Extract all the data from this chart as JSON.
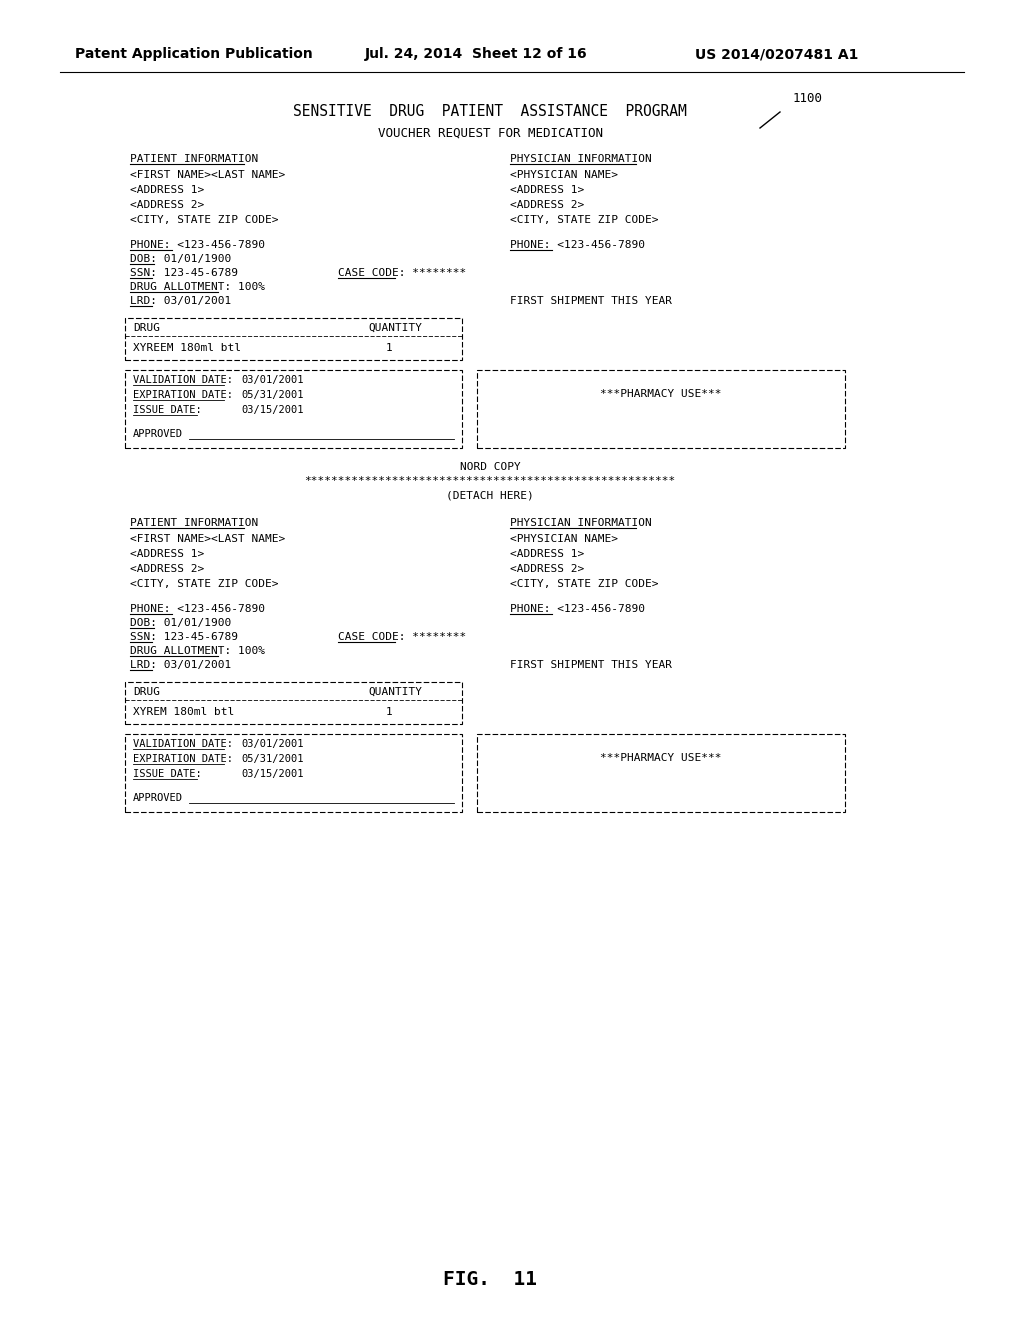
{
  "bg_color": "#ffffff",
  "text_color": "#000000",
  "header_line1": "Patent Application Publication",
  "header_line2": "Jul. 24, 2014  Sheet 12 of 16",
  "header_line3": "US 2014/0207481 A1",
  "title1": "SENSITIVE  DRUG  PATIENT  ASSISTANCE  PROGRAM",
  "title2": "VOUCHER REQUEST FOR MEDICATION",
  "fig_label": "FIG.  11",
  "ref_num": "1100",
  "section1": {
    "patient_info_label": "PATIENT INFORMATION",
    "patient_lines": [
      "<FIRST NAME><LAST NAME>",
      "<ADDRESS 1>",
      "<ADDRESS 2>",
      "<CITY, STATE ZIP CODE>"
    ],
    "physician_info_label": "PHYSICIAN INFORMATION",
    "physician_lines": [
      "<PHYSICIAN NAME>",
      "<ADDRESS 1>",
      "<ADDRESS 2>",
      "<CITY, STATE ZIP CODE>"
    ],
    "phone_left": "PHONE: <123-456-7890",
    "phone_right": "PHONE: <123-456-7890",
    "dob": "DOB: 01/01/1900",
    "ssn": "SSN: 123-45-6789",
    "case_code": "CASE CODE: ********",
    "drug_allotment": "DRUG ALLOTMENT: 100%",
    "lrd": "LRD: 03/01/2001",
    "first_shipment": "FIRST SHIPMENT THIS YEAR",
    "drug_table_drug": "DRUG",
    "drug_table_qty": "QUANTITY",
    "drug_table_drug_val": "XYREEM 180ml btl",
    "drug_table_qty_val": "1",
    "val_date_label": "VALIDATION DATE:",
    "val_date_val": "03/01/2001",
    "exp_date_label": "EXPIRATION DATE:",
    "exp_date_val": "05/31/2001",
    "issue_date_label": "ISSUE DATE:",
    "issue_date_val": "03/15/2001",
    "approved_label": "APPROVED",
    "pharmacy_label": "***PHARMACY USE***"
  },
  "separator_label": "NORD COPY",
  "detach_label": "(DETACH HERE)",
  "section2": {
    "patient_info_label": "PATIENT INFORMATION",
    "patient_lines": [
      "<FIRST NAME><LAST NAME>",
      "<ADDRESS 1>",
      "<ADDRESS 2>",
      "<CITY, STATE ZIP CODE>"
    ],
    "physician_info_label": "PHYSICIAN INFORMATION",
    "physician_lines": [
      "<PHYSICIAN NAME>",
      "<ADDRESS 1>",
      "<ADDRESS 2>",
      "<CITY, STATE ZIP CODE>"
    ],
    "phone_left": "PHONE: <123-456-7890",
    "phone_right": "PHONE: <123-456-7890",
    "dob": "DOB: 01/01/1900",
    "ssn": "SSN: 123-45-6789",
    "case_code": "CASE CODE: ********",
    "drug_allotment": "DRUG ALLOTMENT: 100%",
    "lrd": "LRD: 03/01/2001",
    "first_shipment": "FIRST SHIPMENT THIS YEAR",
    "drug_table_drug": "DRUG",
    "drug_table_qty": "QUANTITY",
    "drug_table_drug_val": "XYREM 180ml btl",
    "drug_table_qty_val": "1",
    "val_date_label": "VALIDATION DATE:",
    "val_date_val": "03/01/2001",
    "exp_date_label": "EXPIRATION DATE:",
    "exp_date_val": "05/31/2001",
    "issue_date_label": "ISSUE DATE:",
    "issue_date_val": "03/15/2001",
    "approved_label": "APPROVED",
    "pharmacy_label": "***PHARMACY USE***"
  }
}
